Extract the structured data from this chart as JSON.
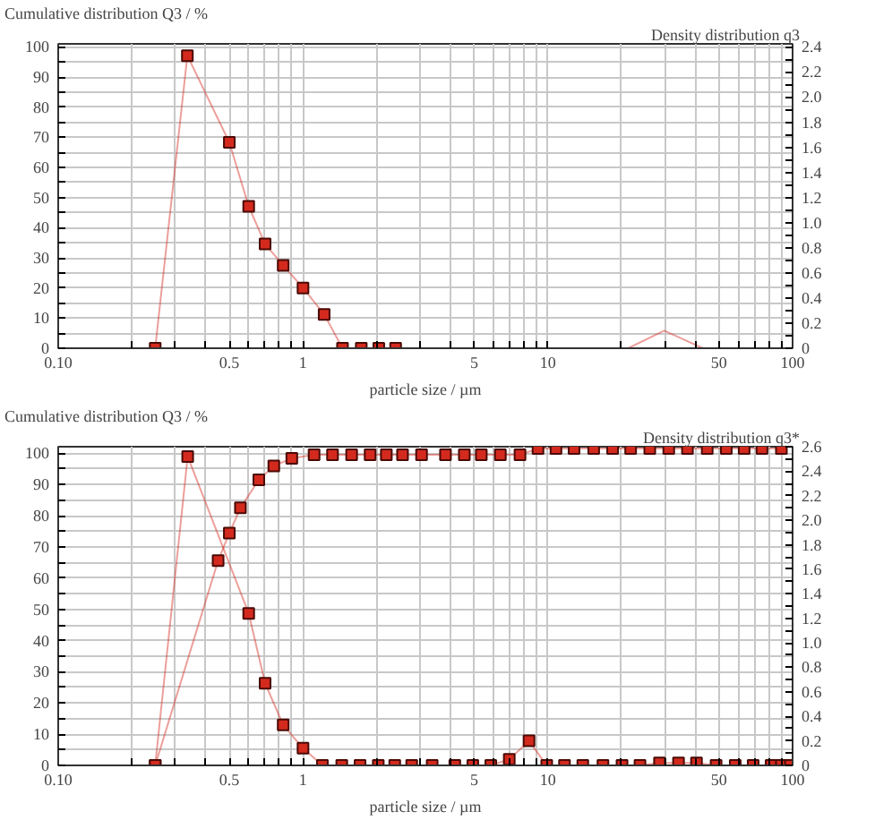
{
  "chart_data": [
    {
      "type": "line",
      "ylabel": "Cumulative distribution Q3 / %",
      "y2label": "Density distribution q3",
      "xlabel": "particle size / µm",
      "log": "x",
      "grid": true,
      "xlim": [
        0.1,
        100
      ],
      "xticks": [
        {
          "value": 0.1,
          "label": "0.10"
        },
        {
          "value": 0.2,
          "label": null
        },
        {
          "value": 0.3,
          "label": null
        },
        {
          "value": 0.4,
          "label": null
        },
        0.5,
        {
          "value": 0.6,
          "label": null
        },
        {
          "value": 0.7,
          "label": null
        },
        {
          "value": 0.8,
          "label": null
        },
        {
          "value": 0.9,
          "label": null
        },
        1,
        {
          "value": 2,
          "label": null
        },
        {
          "value": 3,
          "label": null
        },
        {
          "value": 4,
          "label": null
        },
        5,
        {
          "value": 6,
          "label": null
        },
        {
          "value": 7,
          "label": null
        },
        {
          "value": 8,
          "label": null
        },
        {
          "value": 9,
          "label": null
        },
        10,
        {
          "value": 20,
          "label": null
        },
        {
          "value": 30,
          "label": null
        },
        {
          "value": 40,
          "label": null
        },
        50,
        {
          "value": 60,
          "label": null
        },
        {
          "value": 70,
          "label": null
        },
        {
          "value": 80,
          "label": null
        },
        {
          "value": 90,
          "label": null
        },
        100
      ],
      "ylim": [
        0,
        101
      ],
      "yticks": [
        0,
        {
          "value": 5,
          "label": null
        },
        10,
        {
          "value": 15,
          "label": null
        },
        20,
        {
          "value": 25,
          "label": null
        },
        30,
        {
          "value": 35,
          "label": null
        },
        40,
        {
          "value": 45,
          "label": null
        },
        50,
        {
          "value": 55,
          "label": null
        },
        60,
        {
          "value": 65,
          "label": null
        },
        70,
        {
          "value": 75,
          "label": null
        },
        80,
        {
          "value": 85,
          "label": null
        },
        90,
        {
          "value": 95,
          "label": null
        },
        100
      ],
      "y2lim": [
        0,
        2.424
      ],
      "y2ticks": [
        0,
        {
          "value": 0.1,
          "label": null
        },
        0.2,
        {
          "value": 0.3,
          "label": null
        },
        0.4,
        {
          "value": 0.5,
          "label": null
        },
        0.6,
        {
          "value": 0.7,
          "label": null
        },
        0.8,
        {
          "value": 0.9,
          "label": null
        },
        {
          "value": 1,
          "label": "1.0"
        },
        {
          "value": 1.1,
          "label": null
        },
        1.2,
        {
          "value": 1.3,
          "label": null
        },
        1.4,
        {
          "value": 1.5,
          "label": null
        },
        1.6,
        {
          "value": 1.7,
          "label": null
        },
        1.8,
        {
          "value": 1.9,
          "label": null
        },
        {
          "value": 2,
          "label": "2.0"
        },
        {
          "value": 2.1,
          "label": null
        },
        2.2,
        {
          "value": 2.3,
          "label": null
        },
        2.4
      ],
      "series": [
        {
          "axis": "y2",
          "color": "#d42a1e",
          "marker": "square",
          "x": [
            0.249,
            0.337,
            0.5,
            0.6,
            0.7,
            0.83,
            1.0,
            1.22,
            1.45,
            1.73,
            2.04,
            2.39
          ],
          "values": [
            0,
            2.33,
            1.64,
            1.13,
            0.83,
            0.66,
            0.48,
            0.27,
            0,
            0,
            0,
            0
          ]
        },
        {
          "axis": "y2",
          "color": "#d42a1e",
          "marker": "none",
          "x": [
            21.3,
            29.9,
            43
          ],
          "values": [
            0,
            0.14,
            0
          ]
        }
      ]
    },
    {
      "type": "line",
      "ylabel": "Cumulative distribution Q3 / %",
      "y2label": "Density distribution q3*",
      "xlabel": "particle size / µm",
      "log": "x",
      "grid": true,
      "xlim": [
        0.1,
        100
      ],
      "xticks": [
        {
          "value": 0.1,
          "label": "0.10"
        },
        {
          "value": 0.2,
          "label": null
        },
        {
          "value": 0.3,
          "label": null
        },
        {
          "value": 0.4,
          "label": null
        },
        0.5,
        {
          "value": 0.6,
          "label": null
        },
        {
          "value": 0.7,
          "label": null
        },
        {
          "value": 0.8,
          "label": null
        },
        {
          "value": 0.9,
          "label": null
        },
        1,
        {
          "value": 2,
          "label": null
        },
        {
          "value": 3,
          "label": null
        },
        {
          "value": 4,
          "label": null
        },
        5,
        {
          "value": 6,
          "label": null
        },
        {
          "value": 7,
          "label": null
        },
        {
          "value": 8,
          "label": null
        },
        {
          "value": 9,
          "label": null
        },
        10,
        {
          "value": 20,
          "label": null
        },
        {
          "value": 30,
          "label": null
        },
        {
          "value": 40,
          "label": null
        },
        50,
        {
          "value": 60,
          "label": null
        },
        {
          "value": 70,
          "label": null
        },
        {
          "value": 80,
          "label": null
        },
        {
          "value": 90,
          "label": null
        },
        100
      ],
      "ylim": [
        0,
        102.1
      ],
      "yticks": [
        0,
        {
          "value": 5,
          "label": null
        },
        10,
        {
          "value": 15,
          "label": null
        },
        20,
        {
          "value": 25,
          "label": null
        },
        30,
        {
          "value": 35,
          "label": null
        },
        40,
        {
          "value": 45,
          "label": null
        },
        50,
        {
          "value": 55,
          "label": null
        },
        60,
        {
          "value": 65,
          "label": null
        },
        70,
        {
          "value": 75,
          "label": null
        },
        80,
        {
          "value": 85,
          "label": null
        },
        90,
        {
          "value": 95,
          "label": null
        },
        100
      ],
      "y2lim": [
        0,
        2.6
      ],
      "y2ticks": [
        0,
        {
          "value": 0.1,
          "label": null
        },
        0.2,
        {
          "value": 0.3,
          "label": null
        },
        0.4,
        {
          "value": 0.5,
          "label": null
        },
        0.6,
        {
          "value": 0.7,
          "label": null
        },
        0.8,
        {
          "value": 0.9,
          "label": null
        },
        {
          "value": 1,
          "label": "1.0"
        },
        {
          "value": 1.1,
          "label": null
        },
        1.2,
        {
          "value": 1.3,
          "label": null
        },
        1.4,
        {
          "value": 1.5,
          "label": null
        },
        1.6,
        {
          "value": 1.7,
          "label": null
        },
        1.8,
        {
          "value": 1.9,
          "label": null
        },
        {
          "value": 2,
          "label": "2.0"
        },
        {
          "value": 2.1,
          "label": null
        },
        2.2,
        {
          "value": 2.3,
          "label": null
        },
        2.4,
        {
          "value": 2.5,
          "label": null
        },
        2.6
      ],
      "series": [
        {
          "axis": "y2",
          "color": "#d42a1e",
          "marker": "square",
          "x": [
            0.249,
            0.338,
            0.6,
            0.7,
            0.83,
            1.0,
            1.2,
            1.44,
            1.71,
            2.03,
            2.37,
            2.78,
            3.37,
            4.17,
            4.94,
            5.85,
            6.96,
            8.38,
            9.9,
            11.7,
            13.9,
            16.8,
            20.1,
            23.8,
            28.6,
            34.2,
            40.5,
            48.7,
            58.3,
            69,
            81.7,
            90,
            98
          ],
          "values": [
            0,
            2.52,
            1.24,
            0.67,
            0.33,
            0.14,
            0,
            0,
            0,
            0,
            0,
            0,
            0,
            0,
            0,
            0,
            0.05,
            0.2,
            0,
            0,
            0,
            0,
            0,
            0,
            0.02,
            0.02,
            0.02,
            0,
            0,
            0,
            0,
            0,
            0
          ]
        },
        {
          "axis": "y",
          "color": "#d42a1e",
          "marker": "square",
          "x": [
            0.249,
            0.45,
            0.5,
            0.555,
            0.66,
            0.76,
            0.9,
            1.11,
            1.32,
            1.58,
            1.88,
            2.19,
            2.55,
            3.05,
            3.82,
            4.56,
            5.35,
            6.4,
            7.7,
            9.12,
            10.8,
            12.8,
            15.4,
            18.4,
            21.8,
            26.1,
            31.2,
            37.2,
            44.8,
            53.6,
            63.4,
            75,
            90
          ],
          "values": [
            0,
            65.6,
            74.4,
            82.5,
            91.5,
            95.9,
            98.4,
            99.5,
            99.5,
            99.5,
            99.5,
            99.5,
            99.5,
            99.5,
            99.5,
            99.5,
            99.5,
            99.5,
            99.5,
            101.5,
            101.5,
            101.5,
            101.5,
            101.5,
            101.5,
            101.5,
            101.5,
            101.5,
            101.5,
            101.5,
            101.5,
            101.5,
            101.5
          ]
        }
      ]
    }
  ]
}
